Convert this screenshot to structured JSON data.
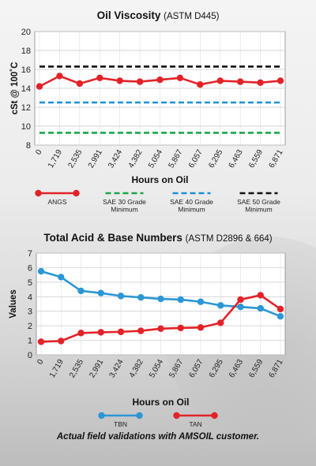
{
  "caption": "Actual field validations with AMSOIL customer.",
  "colors": {
    "angs": "#e32228",
    "sae30": "#1aa64a",
    "sae40": "#1b8fd6",
    "sae50": "#111111",
    "tbn": "#2a97d4",
    "tan": "#e32228"
  },
  "chart_data": [
    {
      "type": "line",
      "title": "Oil Viscosity",
      "subtitle": "(ASTM D445)",
      "xlabel": "Hours on Oil",
      "ylabel": "cSt @ 100˚C",
      "x": [
        "0",
        "1,719",
        "2,535",
        "2,991",
        "3,424",
        "4,382",
        "5,054",
        "5,867",
        "6,057",
        "6,295",
        "6,463",
        "6,559",
        "6,871"
      ],
      "ylim": [
        8,
        20
      ],
      "yticks": [
        8,
        10,
        12,
        14,
        16,
        18,
        20
      ],
      "grid": true,
      "legend": "bottom",
      "series": [
        {
          "name": "ANGS",
          "style": "line-marker",
          "color": "#e32228",
          "values": [
            14.2,
            15.3,
            14.5,
            15.1,
            14.8,
            14.7,
            14.9,
            15.1,
            14.4,
            14.8,
            14.7,
            14.6,
            14.8
          ]
        },
        {
          "name": "SAE 30 Grade Minimum",
          "style": "dashed",
          "color": "#1aa64a",
          "values": [
            9.3,
            9.3,
            9.3,
            9.3,
            9.3,
            9.3,
            9.3,
            9.3,
            9.3,
            9.3,
            9.3,
            9.3,
            9.3
          ]
        },
        {
          "name": "SAE 40 Grade Minimum",
          "style": "dashed",
          "color": "#1b8fd6",
          "values": [
            12.5,
            12.5,
            12.5,
            12.5,
            12.5,
            12.5,
            12.5,
            12.5,
            12.5,
            12.5,
            12.5,
            12.5,
            12.5
          ]
        },
        {
          "name": "SAE 50 Grade Minimum",
          "style": "dashed",
          "color": "#111111",
          "values": [
            16.3,
            16.3,
            16.3,
            16.3,
            16.3,
            16.3,
            16.3,
            16.3,
            16.3,
            16.3,
            16.3,
            16.3,
            16.3
          ]
        }
      ]
    },
    {
      "type": "line",
      "title": "Total Acid & Base Numbers",
      "subtitle": "(ASTM D2896 & 664)",
      "xlabel": "Hours on Oil",
      "ylabel": "Values",
      "x": [
        "0",
        "1,719",
        "2,535",
        "2,991",
        "3,424",
        "4,382",
        "5,054",
        "5,867",
        "6,057",
        "6,295",
        "6,463",
        "6,559",
        "6,871"
      ],
      "ylim": [
        0,
        7
      ],
      "yticks": [
        0,
        1,
        2,
        3,
        4,
        5,
        6,
        7
      ],
      "grid": true,
      "legend": "bottom",
      "series": [
        {
          "name": "TBN",
          "style": "line-marker",
          "color": "#2a97d4",
          "values": [
            5.75,
            5.35,
            4.4,
            4.25,
            4.05,
            3.95,
            3.85,
            3.8,
            3.65,
            3.4,
            3.3,
            3.2,
            2.65
          ]
        },
        {
          "name": "TAN",
          "style": "line-marker",
          "color": "#e32228",
          "values": [
            0.9,
            0.95,
            1.5,
            1.55,
            1.58,
            1.65,
            1.8,
            1.85,
            1.88,
            2.2,
            3.8,
            4.1,
            3.15
          ]
        }
      ]
    }
  ]
}
